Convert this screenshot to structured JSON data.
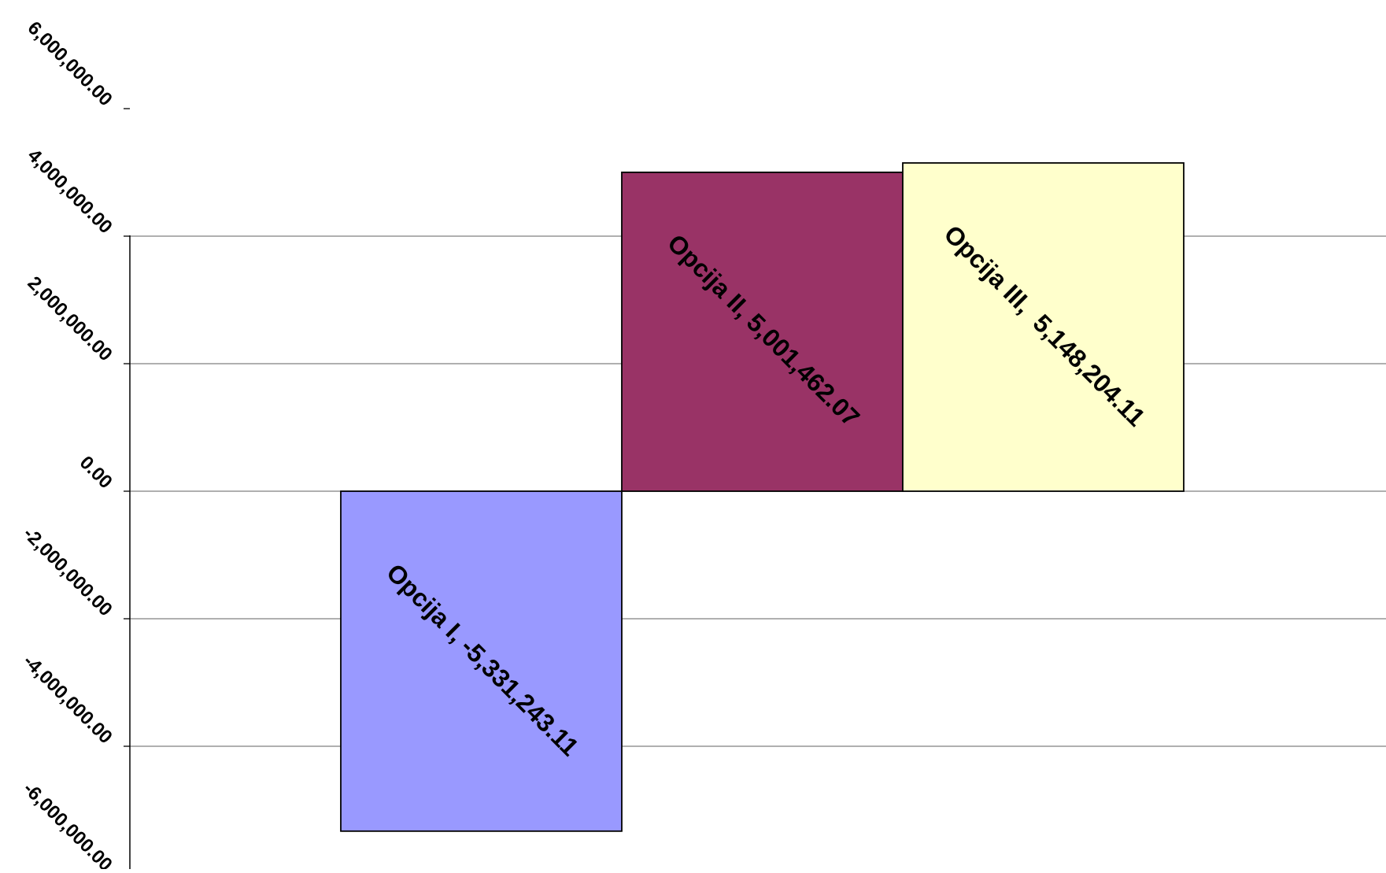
{
  "chart_data": {
    "type": "bar",
    "categories": [
      "Opcija I",
      "Opcija II",
      "Opcija III"
    ],
    "values": [
      -5331243.11,
      5001462.07,
      5148204.11
    ],
    "data_labels": [
      "Opcija I, -5,331,243.11",
      "Opcija II, 5,001,462.07",
      "Opcija III,  5,148,204.11"
    ],
    "colors": [
      "#9999ff",
      "#993366",
      "#ffffcc"
    ],
    "title": "",
    "xlabel": "",
    "ylabel": "",
    "ylim": [
      -6000000,
      6000000
    ],
    "y_ticks": [
      6000000,
      4000000,
      2000000,
      0,
      -2000000,
      -4000000,
      -6000000
    ],
    "y_tick_labels": [
      "6,000,000.00",
      "4,000,000.00",
      "2,000,000.00",
      "0.00",
      "-2,000,000.00",
      "-4,000,000.00",
      "-6,000,000.00"
    ],
    "grid": true,
    "legend": "none"
  }
}
